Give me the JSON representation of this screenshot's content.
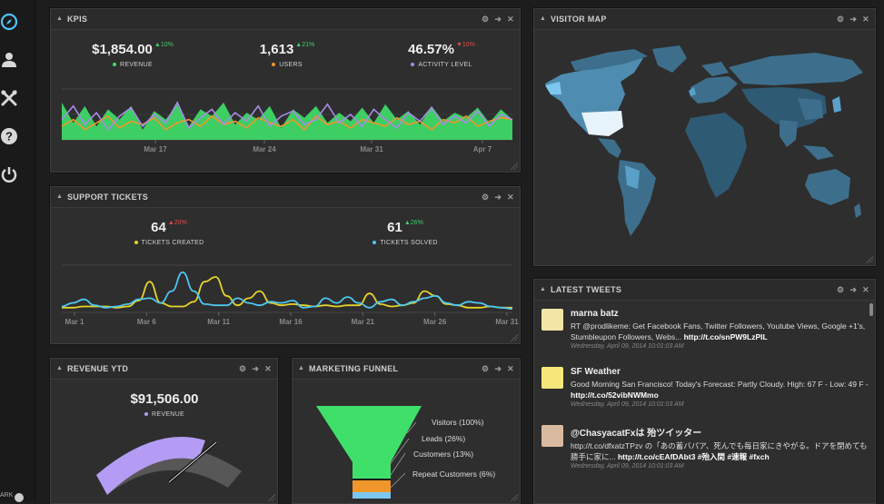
{
  "sidebar": {
    "icons": [
      "compass-icon",
      "user-icon",
      "tools-icon",
      "help-icon",
      "power-icon"
    ],
    "dark_label": "ARK"
  },
  "kpis": {
    "title": "KPIS",
    "revenue": {
      "value": "$1,854.00",
      "change": "▲10%",
      "label": "REVENUE",
      "color": "#3fe06a"
    },
    "users": {
      "value": "1,613",
      "change": "▲21%",
      "label": "USERS",
      "color": "#f0962a"
    },
    "activity": {
      "value": "46.57%",
      "change": "▼10%",
      "label": "ACTIVITY LEVEL",
      "color": "#a98ae8"
    },
    "x_ticks": [
      "Mar 17",
      "Mar 24",
      "Mar 31",
      "Apr 7"
    ]
  },
  "support": {
    "title": "SUPPORT TICKETS",
    "created": {
      "value": "64",
      "change": "▲20%",
      "label": "TICKETS CREATED",
      "color": "#e8d22a"
    },
    "solved": {
      "value": "61",
      "change": "▲26%",
      "label": "TICKETS SOLVED",
      "color": "#4ec6f0"
    },
    "x_ticks": [
      "Mar 1",
      "Mar 6",
      "Mar 11",
      "Mar 16",
      "Mar 21",
      "Mar 26",
      "Mar 31"
    ]
  },
  "revenue_ytd": {
    "title": "REVENUE YTD",
    "value": "$91,506.00",
    "label": "REVENUE",
    "color": "#b49cf5"
  },
  "funnel": {
    "title": "MARKETING FUNNEL",
    "stages": [
      "Visitors (100%)",
      "Leads (26%)",
      "Customers (13%)",
      "Repeat Customers (6%)"
    ]
  },
  "visitor_map": {
    "title": "VISITOR MAP"
  },
  "tweets": {
    "title": "LATEST TWEETS",
    "items": [
      {
        "name": "marna batz",
        "text": "RT @prodlikeme: Get Facebook Fans, Twitter Followers, Youtube Views, Google +1's, Stumbleupon Followers, Webs...",
        "link": "http://t.co/snPW9LzPIL",
        "date": "Wednesday, April 09, 2014 10:01:03 AM"
      },
      {
        "name": "SF Weather",
        "text": "Good Morning San Francisco! Today's Forecast: Partly Cloudy. High: 67 F - Low: 49 F -",
        "link": "http://t.co/52vibNWMmo",
        "date": "Wednesday, April 09, 2014 10:01:03 AM"
      },
      {
        "name": "@ChasyacatFxは 殆ツイッター",
        "text": "http://t.co/dfxatzTPzv の「あの蓄バパア、死んでも毎日家にきやがる。ドアを閉めても勝手に家に...",
        "link": "http://t.co/cEAfDAbt3 #殆入間 #速報 #fxch",
        "date": "Wednesday, April 09, 2014 10:01:03 AM"
      }
    ]
  },
  "chart_data": [
    {
      "type": "area",
      "title": "KPIS",
      "x_ticks": [
        "Mar 17",
        "Mar 24",
        "Mar 31",
        "Apr 7"
      ],
      "series": [
        {
          "name": "REVENUE",
          "values": [
            22,
            10,
            20,
            8,
            18,
            12,
            20,
            6,
            17,
            12,
            21,
            8,
            18,
            14,
            22,
            9,
            16,
            12,
            20,
            7,
            18,
            13,
            20,
            10,
            16,
            11,
            19,
            10,
            21,
            12,
            17,
            9,
            20,
            11,
            16,
            13,
            19,
            10,
            18,
            12
          ],
          "color": "#3fe06a"
        },
        {
          "name": "USERS",
          "values": [
            8,
            12,
            6,
            10,
            14,
            7,
            11,
            9,
            13,
            6,
            10,
            12,
            8,
            14,
            9,
            11,
            7,
            13,
            10,
            8,
            12,
            6,
            14,
            9,
            11,
            7,
            12,
            10,
            8,
            13,
            9,
            11,
            6,
            12,
            10,
            14,
            8,
            11,
            13,
            12
          ],
          "color": "#f0962a"
        },
        {
          "name": "ACTIVITY LEVEL",
          "values": [
            12,
            20,
            9,
            16,
            6,
            14,
            19,
            8,
            15,
            10,
            22,
            7,
            13,
            18,
            9,
            16,
            11,
            20,
            8,
            14,
            17,
            9,
            12,
            21,
            10,
            15,
            8,
            18,
            12,
            7,
            16,
            11,
            19,
            9,
            14,
            10,
            17,
            8,
            15,
            12
          ],
          "color": "#a98ae8"
        }
      ]
    },
    {
      "type": "line",
      "title": "SUPPORT TICKETS",
      "x_ticks": [
        "Mar 1",
        "Mar 6",
        "Mar 11",
        "Mar 16",
        "Mar 21",
        "Mar 26",
        "Mar 31"
      ],
      "series": [
        {
          "name": "TICKETS CREATED",
          "values": [
            4,
            4,
            5,
            5,
            5,
            4,
            5,
            10,
            26,
            8,
            5,
            5,
            9,
            26,
            30,
            14,
            6,
            12,
            18,
            8,
            6,
            7,
            6,
            5,
            6,
            5,
            6,
            6,
            16,
            7,
            5,
            6,
            8,
            18,
            14,
            7,
            6,
            4,
            4,
            5,
            4,
            4
          ],
          "color": "#e8d22a"
        },
        {
          "name": "TICKETS SOLVED",
          "values": [
            5,
            8,
            11,
            6,
            4,
            5,
            7,
            11,
            12,
            8,
            18,
            34,
            18,
            7,
            6,
            6,
            12,
            8,
            6,
            9,
            8,
            10,
            4,
            5,
            12,
            8,
            13,
            8,
            4,
            9,
            11,
            6,
            9,
            12,
            14,
            8,
            6,
            9,
            8,
            5,
            4,
            3
          ],
          "color": "#4ec6f0"
        }
      ]
    }
  ]
}
